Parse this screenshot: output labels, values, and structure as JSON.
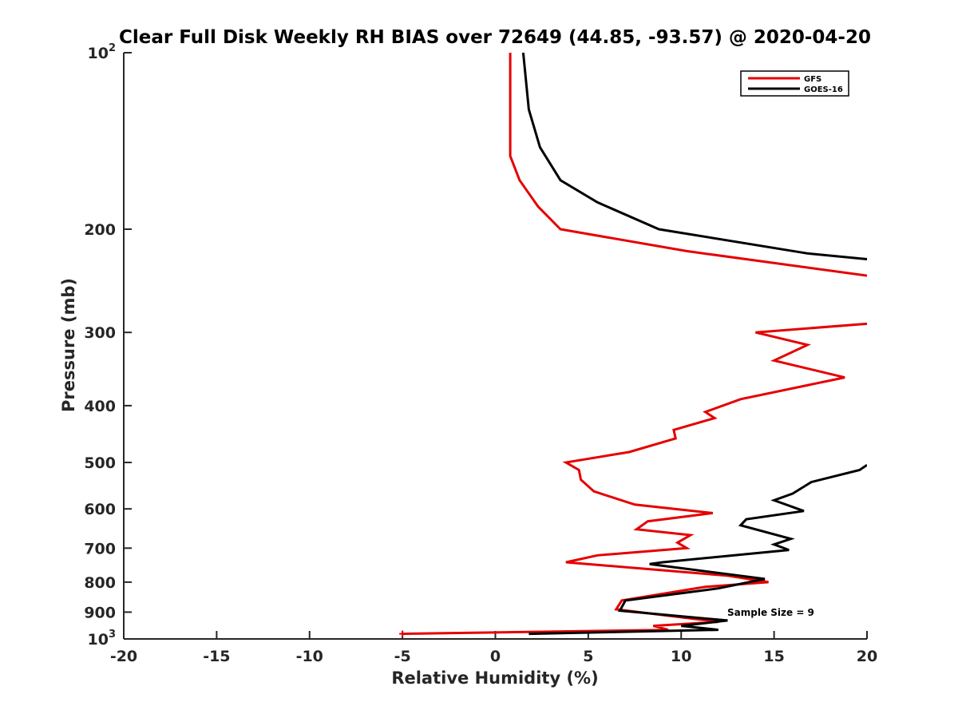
{
  "chart_data": {
    "type": "line",
    "title": "Clear Full Disk Weekly RH BIAS over 72649 (44.85, -93.57) @ 2020-04-20",
    "xlabel": "Relative Humidity (%)",
    "ylabel": "Pressure (mb)",
    "xlim": [
      -20,
      20
    ],
    "ylim": [
      100,
      1000
    ],
    "y_scale": "log",
    "y_reversed": true,
    "grid": false,
    "legend_position": "top-right",
    "x_ticks": [
      "-20",
      "-15",
      "-10",
      "-5",
      "0",
      "5",
      "10",
      "15",
      "20"
    ],
    "y_ticks": [
      {
        "value": 100,
        "label": "10",
        "sup": "2"
      },
      {
        "value": 200,
        "label": "200",
        "sup": ""
      },
      {
        "value": 300,
        "label": "300",
        "sup": ""
      },
      {
        "value": 400,
        "label": "400",
        "sup": ""
      },
      {
        "value": 500,
        "label": "500",
        "sup": ""
      },
      {
        "value": 600,
        "label": "600",
        "sup": ""
      },
      {
        "value": 700,
        "label": "700",
        "sup": ""
      },
      {
        "value": 800,
        "label": "800",
        "sup": ""
      },
      {
        "value": 900,
        "label": "900",
        "sup": ""
      },
      {
        "value": 1000,
        "label": "10",
        "sup": "3"
      }
    ],
    "annotation": "Sample Size = 9",
    "series": [
      {
        "name": "GFS",
        "color": "#e50000",
        "points": [
          [
            0.8,
            100
          ],
          [
            0.8,
            150
          ],
          [
            1.3,
            165
          ],
          [
            2.3,
            183
          ],
          [
            3.5,
            200
          ],
          [
            10.3,
            218
          ],
          [
            20.0,
            240
          ],
          [
            null,
            255
          ],
          [
            20.0,
            290
          ],
          [
            14.0,
            300
          ],
          [
            16.8,
            315
          ],
          [
            15.0,
            335
          ],
          [
            18.8,
            358
          ],
          [
            13.2,
            390
          ],
          [
            11.3,
            410
          ],
          [
            11.8,
            420
          ],
          [
            9.6,
            440
          ],
          [
            9.7,
            455
          ],
          [
            7.2,
            480
          ],
          [
            3.8,
            500
          ],
          [
            4.5,
            515
          ],
          [
            4.6,
            535
          ],
          [
            5.3,
            560
          ],
          [
            7.5,
            590
          ],
          [
            11.7,
            610
          ],
          [
            8.2,
            630
          ],
          [
            7.6,
            650
          ],
          [
            10.5,
            665
          ],
          [
            9.8,
            685
          ],
          [
            10.3,
            700
          ],
          [
            5.5,
            720
          ],
          [
            3.8,
            740
          ],
          [
            12.5,
            780
          ],
          [
            14.7,
            800
          ],
          [
            11.3,
            815
          ],
          [
            6.8,
            860
          ],
          [
            6.5,
            890
          ],
          [
            12.0,
            935
          ],
          [
            8.5,
            950
          ],
          [
            9.3,
            965
          ],
          [
            -5.0,
            980
          ]
        ]
      },
      {
        "name": "GOES-16",
        "color": "#000000",
        "points": [
          [
            1.5,
            100
          ],
          [
            1.8,
            125
          ],
          [
            2.4,
            145
          ],
          [
            3.5,
            165
          ],
          [
            5.5,
            180
          ],
          [
            8.8,
            200
          ],
          [
            16.8,
            220
          ],
          [
            20.0,
            225
          ],
          [
            null,
            240
          ],
          [
            20.0,
            505
          ],
          [
            19.6,
            515
          ],
          [
            17.0,
            540
          ],
          [
            16.0,
            565
          ],
          [
            15.0,
            580
          ],
          [
            16.6,
            605
          ],
          [
            13.5,
            625
          ],
          [
            13.2,
            640
          ],
          [
            15.9,
            675
          ],
          [
            15.0,
            690
          ],
          [
            15.8,
            705
          ],
          [
            9.0,
            740
          ],
          [
            8.3,
            745
          ],
          [
            14.5,
            790
          ],
          [
            12.0,
            820
          ],
          [
            7.0,
            860
          ],
          [
            6.7,
            895
          ],
          [
            12.5,
            930
          ],
          [
            10.0,
            950
          ],
          [
            12.0,
            965
          ],
          [
            1.8,
            980
          ]
        ]
      }
    ]
  }
}
